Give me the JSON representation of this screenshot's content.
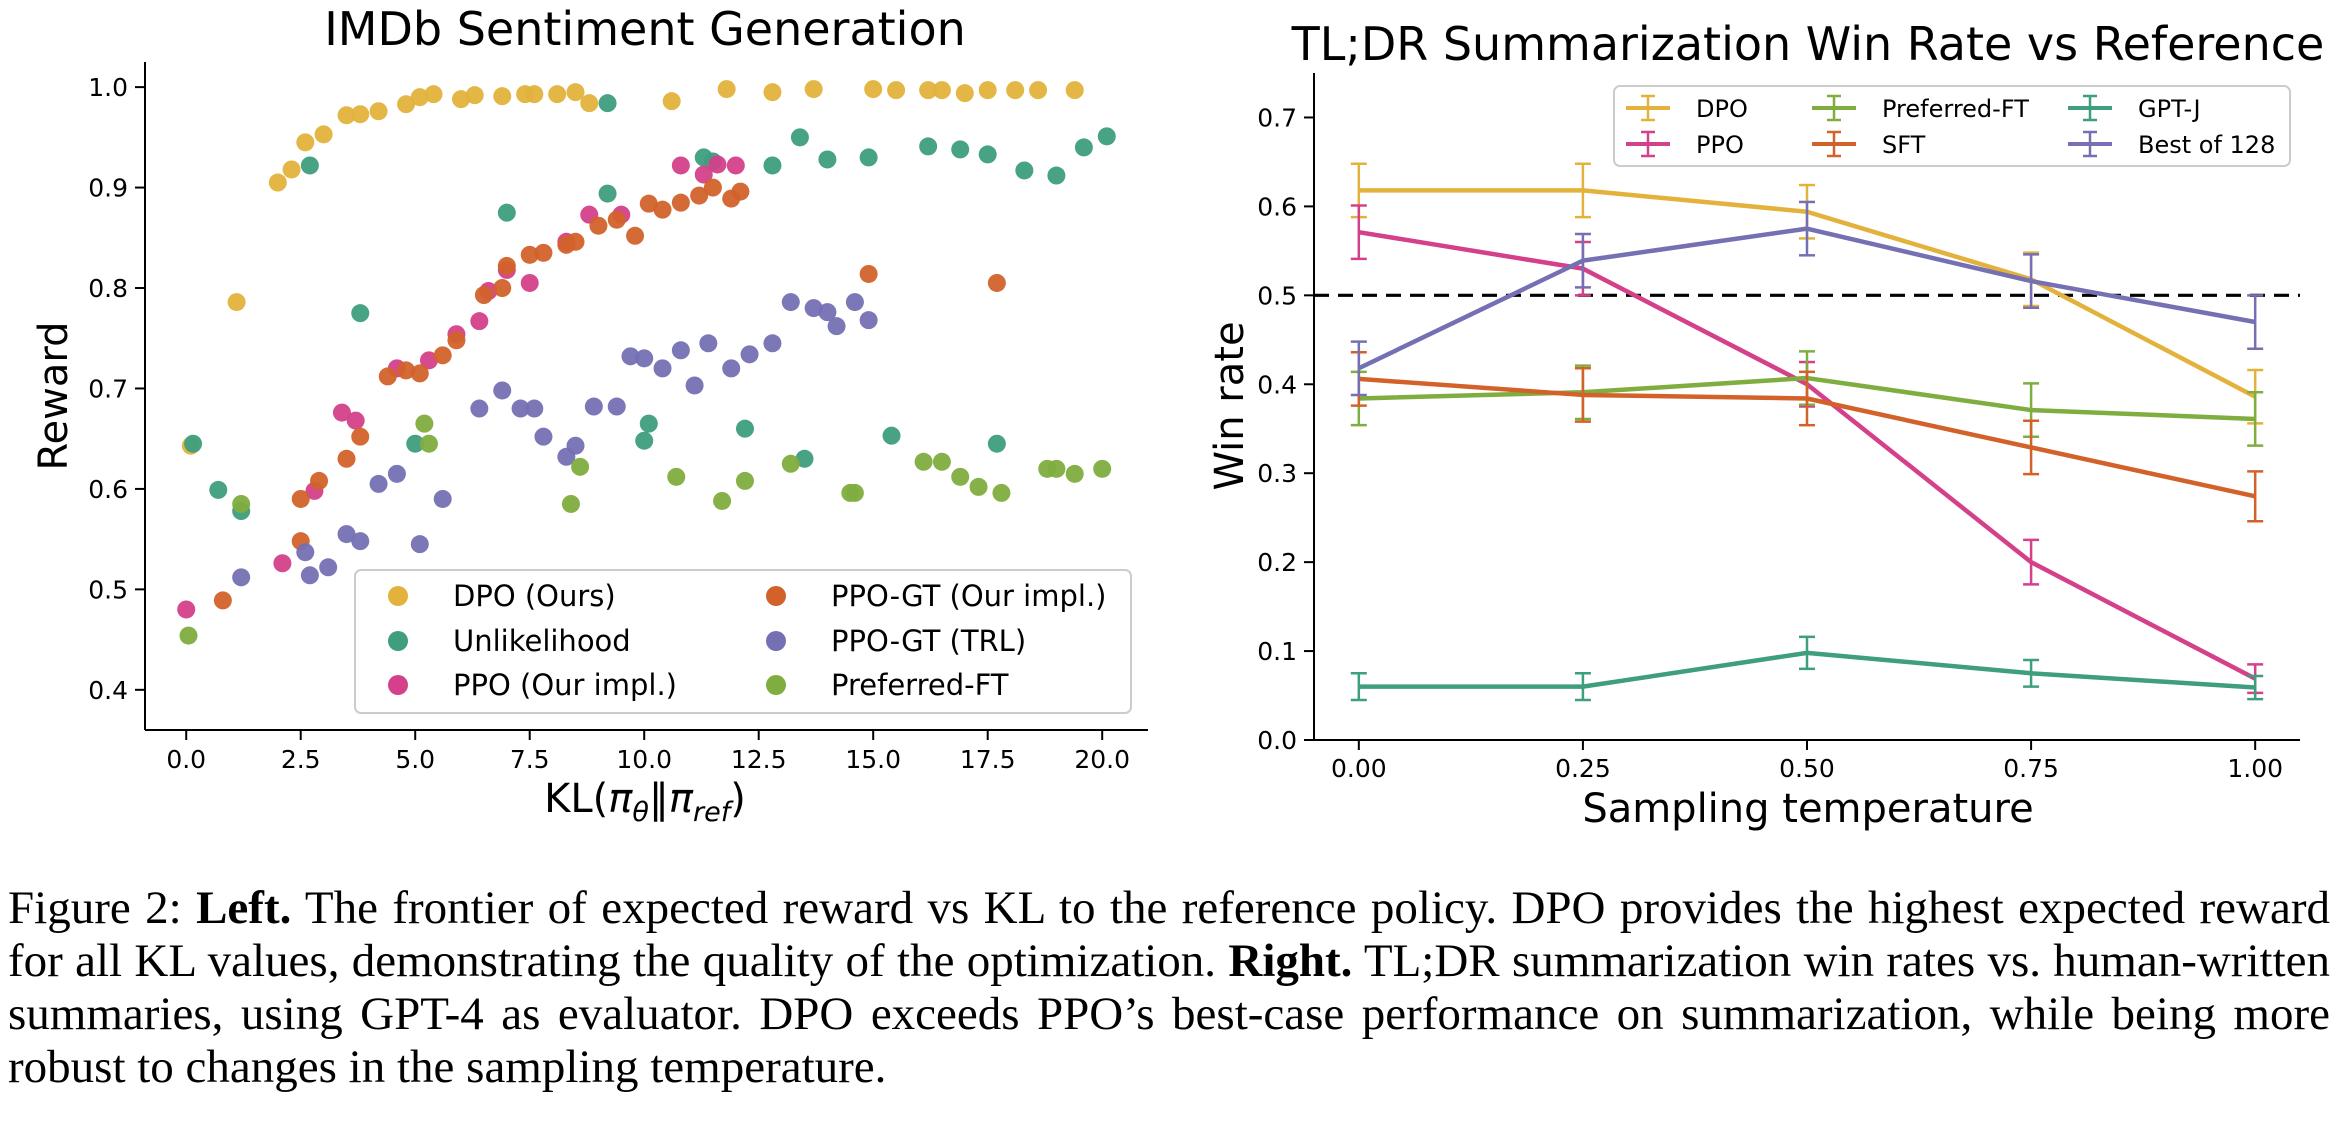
{
  "figure": {
    "caption": {
      "label": "Figure 2:",
      "left_bold": "Left.",
      "left_text": "The frontier of expected reward vs KL to the reference policy. DPO provides the highest expected reward for all KL values, demonstrating the quality of the optimization.",
      "right_bold": "Right.",
      "right_text": "TL;DR summarization win rates vs. human-written summaries, using GPT-4 as evaluator. DPO exceeds PPO’s best-case performance on summarization, while being more robust to changes in the sampling temperature."
    }
  },
  "chart_data": [
    {
      "type": "scatter",
      "title": "IMDb Sentiment Generation",
      "xlabel": "KL(πθ‖πref)",
      "ylabel": "Reward",
      "xlim": [
        -0.9,
        21.0
      ],
      "ylim": [
        0.36,
        1.025
      ],
      "xticks": [
        "0.0",
        "2.5",
        "5.0",
        "7.5",
        "10.0",
        "12.5",
        "15.0",
        "17.5",
        "20.0"
      ],
      "yticks": [
        "0.4",
        "0.5",
        "0.6",
        "0.7",
        "0.8",
        "0.9",
        "1.0"
      ],
      "grid": false,
      "legend_position": "lower-right",
      "legend_columns": 2,
      "series": [
        {
          "name": "DPO (Ours)",
          "color": "#E3B23C",
          "points": [
            [
              0.1,
              0.643
            ],
            [
              1.1,
              0.786
            ],
            [
              2.0,
              0.905
            ],
            [
              2.3,
              0.918
            ],
            [
              2.6,
              0.945
            ],
            [
              3.0,
              0.953
            ],
            [
              3.5,
              0.972
            ],
            [
              3.8,
              0.973
            ],
            [
              4.2,
              0.976
            ],
            [
              4.8,
              0.983
            ],
            [
              5.1,
              0.99
            ],
            [
              5.4,
              0.993
            ],
            [
              6.0,
              0.988
            ],
            [
              6.3,
              0.992
            ],
            [
              6.9,
              0.991
            ],
            [
              7.4,
              0.993
            ],
            [
              7.6,
              0.993
            ],
            [
              8.1,
              0.993
            ],
            [
              8.5,
              0.995
            ],
            [
              8.8,
              0.984
            ],
            [
              10.6,
              0.986
            ],
            [
              11.8,
              0.998
            ],
            [
              12.8,
              0.995
            ],
            [
              13.7,
              0.998
            ],
            [
              15.0,
              0.998
            ],
            [
              15.5,
              0.997
            ],
            [
              16.2,
              0.997
            ],
            [
              16.5,
              0.997
            ],
            [
              17.0,
              0.994
            ],
            [
              17.5,
              0.997
            ],
            [
              18.1,
              0.997
            ],
            [
              18.6,
              0.997
            ],
            [
              19.4,
              0.997
            ]
          ]
        },
        {
          "name": "Unlikelihood",
          "color": "#3E9E7E",
          "points": [
            [
              0.15,
              0.645
            ],
            [
              0.7,
              0.599
            ],
            [
              1.2,
              0.578
            ],
            [
              2.7,
              0.922
            ],
            [
              3.8,
              0.775
            ],
            [
              5.0,
              0.645
            ],
            [
              7.0,
              0.875
            ],
            [
              9.2,
              0.894
            ],
            [
              9.2,
              0.984
            ],
            [
              10.0,
              0.648
            ],
            [
              10.1,
              0.665
            ],
            [
              11.3,
              0.93
            ],
            [
              11.5,
              0.926
            ],
            [
              12.2,
              0.66
            ],
            [
              12.8,
              0.922
            ],
            [
              13.4,
              0.95
            ],
            [
              13.5,
              0.63
            ],
            [
              14.0,
              0.928
            ],
            [
              14.9,
              0.93
            ],
            [
              15.4,
              0.653
            ],
            [
              16.2,
              0.941
            ],
            [
              16.9,
              0.938
            ],
            [
              17.5,
              0.933
            ],
            [
              17.7,
              0.645
            ],
            [
              18.3,
              0.917
            ],
            [
              19.0,
              0.912
            ],
            [
              19.6,
              0.94
            ],
            [
              20.1,
              0.951
            ]
          ]
        },
        {
          "name": "PPO (Our impl.)",
          "color": "#D4408A",
          "points": [
            [
              0.0,
              0.48
            ],
            [
              2.1,
              0.526
            ],
            [
              2.8,
              0.598
            ],
            [
              3.4,
              0.676
            ],
            [
              3.7,
              0.668
            ],
            [
              4.6,
              0.72
            ],
            [
              5.3,
              0.728
            ],
            [
              5.9,
              0.754
            ],
            [
              6.4,
              0.767
            ],
            [
              6.6,
              0.797
            ],
            [
              7.0,
              0.818
            ],
            [
              7.5,
              0.805
            ],
            [
              8.3,
              0.846
            ],
            [
              8.8,
              0.873
            ],
            [
              9.5,
              0.873
            ],
            [
              10.8,
              0.922
            ],
            [
              11.3,
              0.913
            ],
            [
              11.6,
              0.923
            ],
            [
              12.0,
              0.922
            ]
          ]
        },
        {
          "name": "PPO-GT (Our impl.)",
          "color": "#D2622A",
          "points": [
            [
              0.8,
              0.489
            ],
            [
              2.5,
              0.548
            ],
            [
              2.5,
              0.59
            ],
            [
              2.9,
              0.608
            ],
            [
              3.5,
              0.63
            ],
            [
              3.8,
              0.652
            ],
            [
              4.4,
              0.712
            ],
            [
              4.8,
              0.718
            ],
            [
              5.1,
              0.715
            ],
            [
              5.6,
              0.733
            ],
            [
              5.9,
              0.748
            ],
            [
              6.5,
              0.793
            ],
            [
              6.9,
              0.8
            ],
            [
              7.0,
              0.822
            ],
            [
              7.5,
              0.833
            ],
            [
              7.8,
              0.835
            ],
            [
              8.3,
              0.843
            ],
            [
              8.5,
              0.846
            ],
            [
              9.0,
              0.862
            ],
            [
              9.4,
              0.868
            ],
            [
              9.8,
              0.852
            ],
            [
              10.1,
              0.884
            ],
            [
              10.4,
              0.878
            ],
            [
              10.8,
              0.885
            ],
            [
              11.2,
              0.892
            ],
            [
              11.5,
              0.9
            ],
            [
              11.9,
              0.889
            ],
            [
              12.1,
              0.896
            ],
            [
              14.9,
              0.814
            ],
            [
              17.7,
              0.805
            ]
          ]
        },
        {
          "name": "PPO-GT (TRL)",
          "color": "#7570B3",
          "points": [
            [
              1.2,
              0.512
            ],
            [
              2.6,
              0.537
            ],
            [
              2.7,
              0.514
            ],
            [
              3.1,
              0.522
            ],
            [
              3.5,
              0.555
            ],
            [
              3.8,
              0.548
            ],
            [
              4.2,
              0.605
            ],
            [
              4.6,
              0.615
            ],
            [
              5.1,
              0.545
            ],
            [
              5.6,
              0.59
            ],
            [
              6.4,
              0.68
            ],
            [
              6.9,
              0.698
            ],
            [
              7.3,
              0.68
            ],
            [
              7.6,
              0.68
            ],
            [
              7.8,
              0.652
            ],
            [
              8.3,
              0.632
            ],
            [
              8.5,
              0.643
            ],
            [
              8.9,
              0.682
            ],
            [
              9.4,
              0.682
            ],
            [
              9.7,
              0.732
            ],
            [
              10.0,
              0.73
            ],
            [
              10.4,
              0.72
            ],
            [
              10.8,
              0.738
            ],
            [
              11.1,
              0.703
            ],
            [
              11.4,
              0.745
            ],
            [
              11.9,
              0.72
            ],
            [
              12.3,
              0.734
            ],
            [
              12.8,
              0.745
            ],
            [
              13.2,
              0.786
            ],
            [
              13.7,
              0.78
            ],
            [
              14.0,
              0.776
            ],
            [
              14.2,
              0.762
            ],
            [
              14.6,
              0.786
            ],
            [
              14.9,
              0.768
            ]
          ]
        },
        {
          "name": "Preferred-FT",
          "color": "#7FAD3F",
          "points": [
            [
              0.05,
              0.454
            ],
            [
              1.2,
              0.585
            ],
            [
              5.2,
              0.665
            ],
            [
              5.3,
              0.645
            ],
            [
              8.4,
              0.585
            ],
            [
              8.6,
              0.622
            ],
            [
              10.7,
              0.612
            ],
            [
              11.7,
              0.588
            ],
            [
              12.2,
              0.608
            ],
            [
              13.2,
              0.625
            ],
            [
              14.5,
              0.596
            ],
            [
              14.6,
              0.596
            ],
            [
              16.1,
              0.627
            ],
            [
              16.5,
              0.627
            ],
            [
              16.9,
              0.612
            ],
            [
              17.3,
              0.602
            ],
            [
              17.8,
              0.596
            ],
            [
              18.8,
              0.62
            ],
            [
              19.0,
              0.62
            ],
            [
              19.4,
              0.615
            ],
            [
              20.0,
              0.62
            ]
          ]
        }
      ]
    },
    {
      "type": "line",
      "title": "TL;DR Summarization Win Rate vs Reference",
      "xlabel": "Sampling temperature",
      "ylabel": "Win rate",
      "x": [
        0.0,
        0.25,
        0.5,
        0.75,
        1.0
      ],
      "xticks": [
        "0.00",
        "0.25",
        "0.50",
        "0.75",
        "1.00"
      ],
      "yticks": [
        "0.0",
        "0.1",
        "0.2",
        "0.3",
        "0.4",
        "0.5",
        "0.6",
        "0.7"
      ],
      "xlim": [
        -0.05,
        1.05
      ],
      "ylim": [
        0.0,
        0.75
      ],
      "reference_line": 0.5,
      "grid": false,
      "legend_position": "top",
      "legend_columns": 3,
      "series": [
        {
          "name": "DPO",
          "color": "#E3B23C",
          "values": [
            0.618,
            0.618,
            0.594,
            0.518,
            0.386
          ],
          "errors": [
            0.03,
            0.03,
            0.03,
            0.03,
            0.03
          ]
        },
        {
          "name": "PPO",
          "color": "#D4408A",
          "values": [
            0.571,
            0.53,
            0.4,
            0.2,
            0.069
          ],
          "errors": [
            0.03,
            0.03,
            0.025,
            0.025,
            0.016
          ]
        },
        {
          "name": "Preferred-FT",
          "color": "#7FAD3F",
          "values": [
            0.384,
            0.391,
            0.407,
            0.371,
            0.361
          ],
          "errors": [
            0.03,
            0.03,
            0.03,
            0.03,
            0.03
          ]
        },
        {
          "name": "SFT",
          "color": "#D2622A",
          "values": [
            0.406,
            0.388,
            0.384,
            0.329,
            0.274
          ],
          "errors": [
            0.03,
            0.03,
            0.03,
            0.03,
            0.028
          ]
        },
        {
          "name": "GPT-J",
          "color": "#3E9E7E",
          "values": [
            0.06,
            0.06,
            0.098,
            0.075,
            0.059
          ],
          "errors": [
            0.015,
            0.015,
            0.018,
            0.015,
            0.013
          ]
        },
        {
          "name": "Best of 128",
          "color": "#7570B3",
          "values": [
            0.418,
            0.539,
            0.575,
            0.516,
            0.47
          ],
          "errors": [
            0.03,
            0.03,
            0.03,
            0.03,
            0.03
          ]
        }
      ]
    }
  ]
}
